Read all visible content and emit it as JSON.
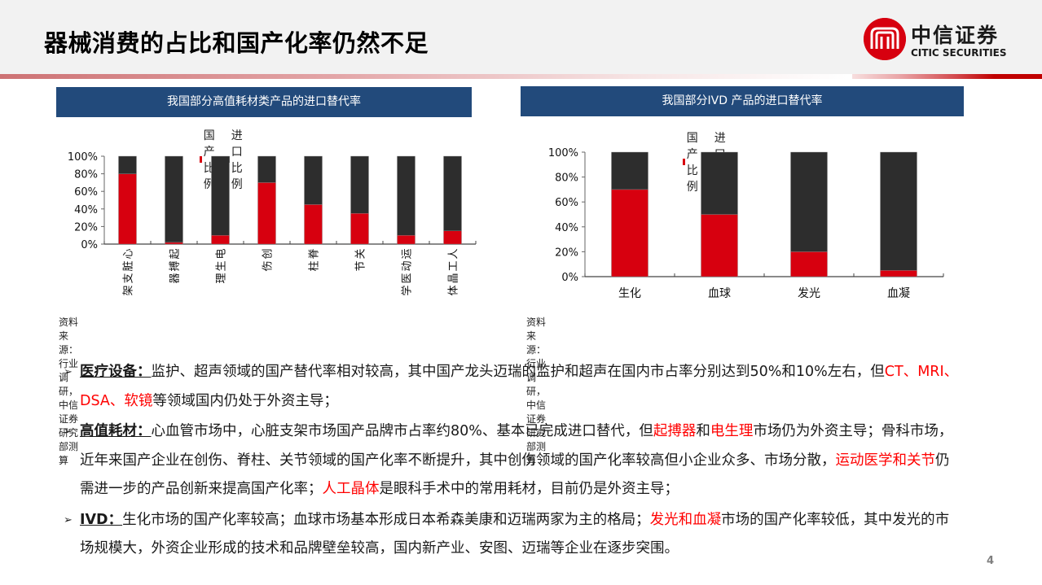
{
  "header": {
    "title": "器械消费的占比和国产化率仍然不足",
    "logo": {
      "cn": "中信证券",
      "en": "CITIC SECURITIES",
      "icon": "citic-logo-icon"
    }
  },
  "colors": {
    "domestic": "#d7000f",
    "import": "#2d2d2d",
    "chart_header_bg": "#224a7b",
    "highlight": "#ff0000"
  },
  "charts": {
    "left": {
      "title": "我国部分高值耗材类产品的进口替代率",
      "legend": [
        "国产比例",
        "进口比例"
      ],
      "source": "资料来源：行业调研，中信证券研究部测算"
    },
    "right": {
      "title": "我国部分IVD 产品的进口替代率",
      "legend": [
        "国产比例",
        "进口比例"
      ],
      "source": "资料来源：行业调研，中信证券研究部测算"
    }
  },
  "chart_data": [
    {
      "type": "bar",
      "stacked": true,
      "title": "我国部分高值耗材类产品的进口替代率",
      "categories": [
        "心脏支架",
        "起搏器",
        "电生理",
        "创伤",
        "脊柱",
        "关节",
        "运动医学",
        "人工晶体"
      ],
      "series": [
        {
          "name": "国产比例",
          "color": "#d7000f",
          "values": [
            80,
            2,
            10,
            70,
            45,
            35,
            10,
            15
          ]
        },
        {
          "name": "进口比例",
          "color": "#2d2d2d",
          "values": [
            20,
            98,
            90,
            30,
            55,
            65,
            90,
            85
          ]
        }
      ],
      "yticks": [
        "0%",
        "20%",
        "40%",
        "60%",
        "80%",
        "100%"
      ],
      "ylim": [
        0,
        100
      ],
      "xlabel": "",
      "ylabel": "",
      "legend_position": "top",
      "grid": false
    },
    {
      "type": "bar",
      "stacked": true,
      "title": "我国部分IVD 产品的进口替代率",
      "categories": [
        "生化",
        "血球",
        "发光",
        "血凝"
      ],
      "series": [
        {
          "name": "国产比例",
          "color": "#d7000f",
          "values": [
            70,
            50,
            20,
            5
          ]
        },
        {
          "name": "进口比例",
          "color": "#2d2d2d",
          "values": [
            30,
            50,
            80,
            95
          ]
        }
      ],
      "yticks": [
        "0%",
        "20%",
        "40%",
        "60%",
        "80%",
        "100%"
      ],
      "ylim": [
        0,
        100
      ],
      "xlabel": "",
      "ylabel": "",
      "legend_position": "top",
      "grid": false
    }
  ],
  "bullets": [
    {
      "lead": "医疗设备：",
      "segments": [
        {
          "text": "监护、超声领域的国产替代率相对较高，其中国产龙头迈瑞的监护和超声在国内市占率分别达到50%和10%左右，但",
          "red": false
        },
        {
          "text": "CT、MRI、DSA、软镜",
          "red": true
        },
        {
          "text": "等领域国内仍处于外资主导；",
          "red": false
        }
      ]
    },
    {
      "lead": "高值耗材：",
      "segments": [
        {
          "text": "心血管市场中，心脏支架市场国产品牌市占率约80%、基本已完成进口替代，但",
          "red": false
        },
        {
          "text": "起搏器",
          "red": true
        },
        {
          "text": "和",
          "red": false
        },
        {
          "text": "电生理",
          "red": true
        },
        {
          "text": "市场仍为外资主导；骨科市场，近年来国产企业在创伤、脊柱、关节领域的国产化率不断提升，其中创伤领域的国产化率较高但小企业众多、市场分散，",
          "red": false
        },
        {
          "text": "运动医学和关节",
          "red": true
        },
        {
          "text": "仍需进一步的产品创新来提高国产化率；",
          "red": false
        },
        {
          "text": "人工晶体",
          "red": true
        },
        {
          "text": "是眼科手术中的常用耗材，目前仍是外资主导；",
          "red": false
        }
      ]
    },
    {
      "lead": "IVD：",
      "segments": [
        {
          "text": "生化市场的国产化率较高；血球市场基本形成日本希森美康和迈瑞两家为主的格局；",
          "red": false
        },
        {
          "text": "发光和血凝",
          "red": true
        },
        {
          "text": "市场的国产化率较低，其中发光的市场规模大，外资企业形成的技术和品牌壁垒较高，国内新产业、安图、迈瑞等企业在逐步突围。",
          "red": false
        }
      ]
    }
  ],
  "page_number": "4"
}
